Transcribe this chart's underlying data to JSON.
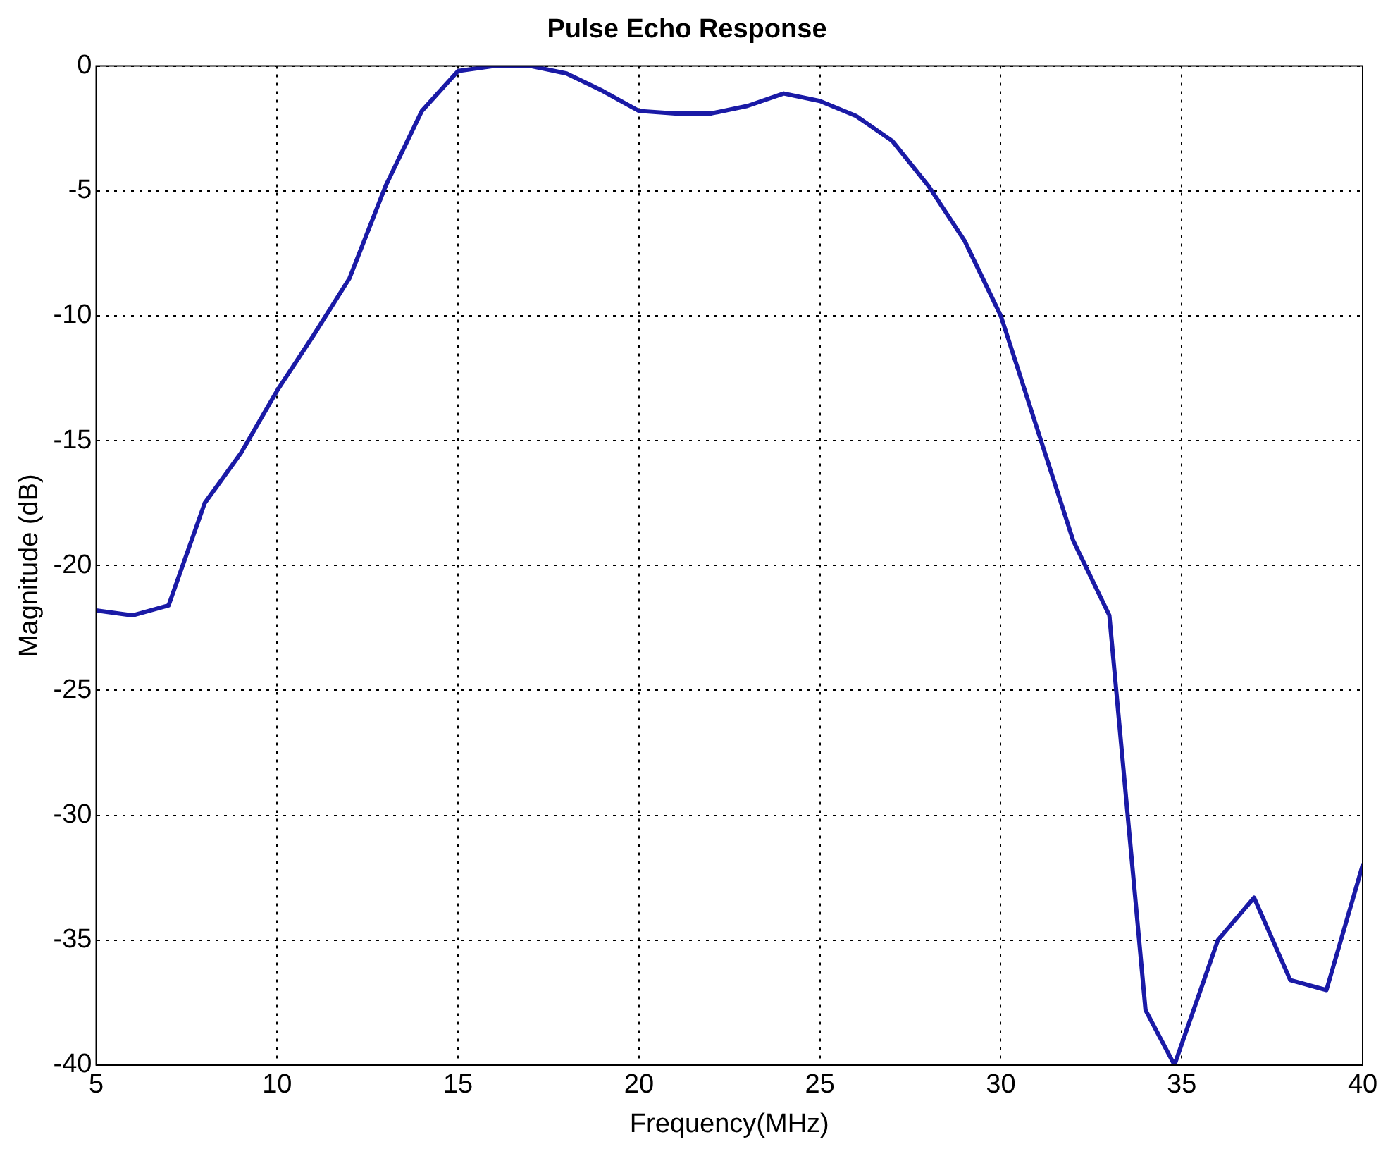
{
  "chart_data": {
    "type": "line",
    "title": "Pulse Echo Response",
    "xlabel": "Frequency(MHz)",
    "ylabel": "Magnitude (dB)",
    "x": [
      5,
      6,
      7,
      8,
      9,
      10,
      11,
      12,
      13,
      14,
      15,
      16,
      17,
      18,
      19,
      20,
      21,
      22,
      23,
      24,
      25,
      26,
      27,
      28,
      29,
      30,
      31,
      32,
      33,
      34,
      34.8,
      36,
      37,
      38,
      39,
      40
    ],
    "series": [
      {
        "color": "#1a1aa6",
        "values": [
          -21.8,
          -22.0,
          -21.6,
          -17.5,
          -15.5,
          -13.0,
          -10.8,
          -8.5,
          -4.8,
          -1.8,
          -0.2,
          0,
          0,
          -0.3,
          -1.0,
          -1.8,
          -1.9,
          -1.9,
          -1.6,
          -1.1,
          -1.4,
          -2.0,
          -3.0,
          -4.8,
          -7.0,
          -10.0,
          -14.5,
          -19.0,
          -22.0,
          -37.8,
          -40,
          -35.0,
          -33.3,
          -36.6,
          -37.0,
          -32.0
        ]
      }
    ],
    "xlim": [
      5,
      40
    ],
    "ylim": [
      -40,
      0
    ],
    "xticks": [
      5,
      10,
      15,
      20,
      25,
      30,
      35,
      40
    ],
    "yticks": [
      -40,
      -35,
      -30,
      -25,
      -20,
      -15,
      -10,
      -5,
      0
    ],
    "grid": true
  }
}
